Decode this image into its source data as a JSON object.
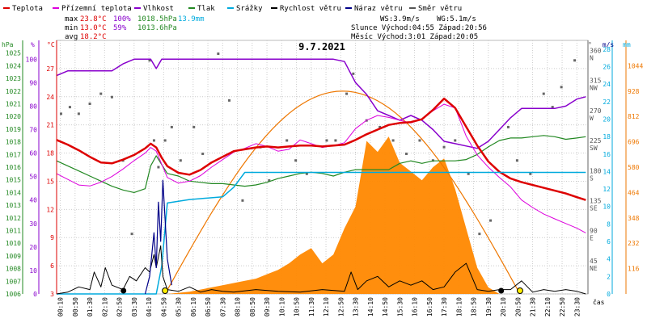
{
  "chart_data": {
    "type": "line",
    "title": "9.7.2021",
    "legend": [
      {
        "label": "Teplota",
        "color": "#dd0000"
      },
      {
        "label": "Přízemní teplota",
        "color": "#dd00dd"
      },
      {
        "label": "Vlhkost",
        "color": "#8800cc"
      },
      {
        "label": "Tlak",
        "color": "#228822"
      },
      {
        "label": "Srážky",
        "color": "#00aadd"
      },
      {
        "label": "Rychlost větru",
        "color": "#000000"
      },
      {
        "label": "Náraz větru",
        "color": "#000088"
      },
      {
        "label": "Směr větru",
        "color": "#555555"
      }
    ],
    "stats": {
      "max_label": "max",
      "max_temp": "23.8°C",
      "max_hum": "100%",
      "max_pres": "1018.5hPa",
      "max_rain": "13.9mm",
      "min_label": "min",
      "min_temp": "13.0°C",
      "min_hum": "59%",
      "min_pres": "1013.6hPa",
      "avg_label": "avg",
      "avg_temp": "18.2°C"
    },
    "info": {
      "ws": "WS:3.9m/s",
      "wg": "WG:5.1m/s",
      "sun": "Slunce Východ:04:55  Západ:20:56",
      "moon": "Měsíc  Východ:3:01   Západ:20:05"
    },
    "axes": {
      "hpa_label": "hPa",
      "pct_label": "%",
      "degc_label": "°C",
      "deg_label": "°",
      "ms_label": "m/s",
      "mm_label": "mm",
      "x_label": "čas",
      "hpa_ticks": [
        1006,
        1007,
        1008,
        1009,
        1010,
        1011,
        1012,
        1013,
        1014,
        1015,
        1016,
        1017,
        1018,
        1019,
        1020,
        1021,
        1022,
        1023,
        1024,
        1025
      ],
      "pct_ticks": [
        0,
        10,
        20,
        30,
        40,
        50,
        60,
        70,
        80,
        90,
        100
      ],
      "temp_ticks": [
        3,
        6,
        9,
        12,
        15,
        18,
        21,
        24,
        27
      ],
      "dir_ticks": [
        {
          "v": 360,
          "d": "N"
        },
        {
          "v": 315,
          "d": "NW"
        },
        {
          "v": 270,
          "d": "W"
        },
        {
          "v": 225,
          "d": "SW"
        },
        {
          "v": 180,
          "d": "S"
        },
        {
          "v": 135,
          "d": "SE"
        },
        {
          "v": 90,
          "d": "E"
        },
        {
          "v": 45,
          "d": "NE"
        }
      ],
      "ms_ticks": [
        0,
        2,
        4,
        6,
        8,
        10,
        12,
        14,
        16,
        18,
        20,
        22,
        24,
        26,
        28
      ],
      "rad_ticks": [
        0,
        116,
        232,
        348,
        464,
        580,
        696,
        812,
        928,
        1044
      ],
      "x_ticks": [
        "00:10",
        "00:50",
        "01:30",
        "02:10",
        "02:50",
        "03:30",
        "04:10",
        "04:50",
        "05:30",
        "06:10",
        "06:50",
        "07:30",
        "08:10",
        "08:50",
        "09:30",
        "10:10",
        "10:50",
        "11:30",
        "12:10",
        "12:50",
        "13:30",
        "14:10",
        "14:50",
        "15:30",
        "16:10",
        "16:50",
        "17:30",
        "18:10",
        "18:50",
        "19:30",
        "20:10",
        "20:50",
        "21:30",
        "22:10",
        "22:50",
        "23:30"
      ]
    },
    "ranges": {
      "temp": [
        3,
        30
      ],
      "hum": [
        0,
        108
      ],
      "pres": [
        1006,
        1026
      ],
      "rain": [
        0,
        29
      ],
      "dir": [
        0,
        380
      ],
      "rad": [
        0,
        1160
      ]
    },
    "grid": true,
    "hours": [
      0,
      0.5,
      1,
      1.5,
      2,
      2.5,
      3,
      3.5,
      4,
      4.25,
      4.5,
      4.75,
      5,
      5.5,
      6,
      6.5,
      7,
      7.5,
      8,
      8.5,
      9,
      9.5,
      10,
      10.5,
      11,
      11.5,
      12,
      12.5,
      13,
      13.5,
      14,
      14.5,
      15,
      15.5,
      16,
      16.5,
      17,
      17.5,
      18,
      18.5,
      19,
      19.5,
      20,
      20.5,
      21,
      21.5,
      22,
      22.5,
      23,
      23.5,
      23.9
    ],
    "series": {
      "temperature": [
        19.4,
        18.9,
        18.3,
        17.6,
        17.0,
        16.9,
        17.3,
        17.8,
        18.5,
        19.0,
        18.6,
        17.5,
        16.6,
        15.9,
        15.7,
        16.2,
        17.0,
        17.6,
        18.2,
        18.4,
        18.6,
        18.7,
        18.6,
        18.7,
        18.8,
        18.8,
        18.7,
        18.8,
        18.9,
        19.4,
        20.0,
        20.5,
        21.0,
        21.2,
        21.3,
        21.6,
        22.6,
        23.8,
        22.8,
        20.8,
        18.8,
        17.1,
        16.0,
        15.3,
        14.9,
        14.6,
        14.3,
        14.0,
        13.7,
        13.3,
        13.0
      ],
      "ground_temp": [
        15.8,
        15.2,
        14.6,
        14.5,
        14.9,
        15.5,
        16.3,
        17.2,
        18.0,
        18.6,
        18.2,
        16.8,
        15.4,
        14.8,
        15.0,
        15.6,
        16.5,
        17.3,
        18.1,
        18.5,
        19.0,
        18.7,
        18.2,
        18.4,
        19.4,
        19.0,
        18.6,
        18.8,
        19.1,
        20.6,
        21.5,
        22.0,
        21.8,
        21.5,
        21.2,
        21.6,
        22.5,
        23.2,
        22.8,
        19.8,
        17.8,
        16.5,
        15.4,
        14.4,
        13.0,
        12.2,
        11.5,
        11.0,
        10.5,
        10.0,
        9.5
      ],
      "humidity": [
        93,
        95,
        95,
        95,
        95,
        95,
        98,
        100,
        100,
        100,
        96,
        100,
        100,
        100,
        100,
        100,
        100,
        100,
        100,
        100,
        100,
        100,
        100,
        100,
        100,
        100,
        100,
        100,
        99,
        90,
        85,
        78,
        76,
        74,
        76,
        74,
        70,
        65,
        64,
        63,
        62,
        65,
        70,
        75,
        79,
        79,
        79,
        79,
        80,
        83,
        84
      ],
      "pressure": [
        1016.5,
        1016.1,
        1015.7,
        1015.3,
        1014.9,
        1014.5,
        1014.2,
        1014.0,
        1014.3,
        1016.1,
        1016.9,
        1016.2,
        1015.5,
        1015.3,
        1014.9,
        1014.8,
        1014.7,
        1014.7,
        1014.6,
        1014.5,
        1014.6,
        1014.8,
        1015.1,
        1015.3,
        1015.5,
        1015.6,
        1015.5,
        1015.3,
        1015.6,
        1015.8,
        1015.8,
        1015.8,
        1015.8,
        1016.3,
        1016.5,
        1016.3,
        1016.5,
        1016.5,
        1016.5,
        1016.6,
        1017.0,
        1017.6,
        1018.1,
        1018.3,
        1018.3,
        1018.4,
        1018.5,
        1018.4,
        1018.2,
        1018.3,
        1018.4
      ],
      "rain_total": [
        0,
        0,
        0,
        0,
        0,
        0,
        0,
        0,
        0,
        0,
        0,
        3.2,
        10.4,
        10.6,
        10.8,
        10.9,
        11.0,
        11.1,
        12.2,
        13.9,
        13.9,
        13.9,
        13.9,
        13.9,
        13.9,
        13.9,
        13.9,
        13.9,
        13.9,
        13.9,
        13.9,
        13.9,
        13.9,
        13.9,
        13.9,
        13.9,
        13.9,
        13.9,
        13.9,
        13.9,
        13.9,
        13.9,
        13.9,
        13.9,
        13.9,
        13.9,
        13.9,
        13.9,
        13.9,
        13.9,
        13.9
      ],
      "solar": [
        0,
        0,
        0,
        0,
        0,
        0,
        0,
        0,
        0,
        0,
        0,
        0,
        0,
        5,
        10,
        20,
        30,
        40,
        50,
        60,
        70,
        90,
        110,
        140,
        180,
        210,
        140,
        180,
        300,
        400,
        700,
        650,
        720,
        600,
        560,
        520,
        580,
        620,
        480,
        300,
        120,
        30,
        0,
        0,
        0,
        0,
        0,
        0,
        0,
        0,
        0
      ]
    },
    "wind_speed_h": [
      0,
      0.5,
      1,
      1.5,
      1.7,
      2,
      2.2,
      2.5,
      3,
      3.3,
      3.6,
      4,
      4.2,
      4.4,
      4.5,
      4.7,
      4.8,
      5,
      5.5,
      6,
      6.5,
      7,
      7.5,
      8,
      9,
      10,
      11,
      12,
      13,
      13.3,
      13.6,
      14,
      14.5,
      15,
      15.5,
      16,
      16.5,
      17,
      17.5,
      18,
      18.5,
      19,
      19.5,
      20,
      20.5,
      21,
      21.5,
      22,
      22.5,
      23,
      23.5,
      23.9
    ],
    "wind_speed": [
      0,
      0.2,
      0.8,
      0.5,
      2.5,
      0.8,
      3,
      1,
      0.5,
      2,
      1.5,
      3,
      2.5,
      4.5,
      3,
      5.5,
      2,
      0.5,
      0.3,
      0.8,
      0.2,
      0.5,
      0.3,
      0.2,
      0.5,
      0.3,
      0.2,
      0.5,
      0.3,
      2.5,
      0.5,
      1.5,
      2,
      0.8,
      1.5,
      1,
      1.5,
      0.5,
      0.8,
      2.5,
      3.5,
      0.5,
      0.3,
      0.5,
      0.5,
      1.5,
      0.2,
      0.5,
      0.3,
      0.5,
      0.3,
      0
    ],
    "wind_gust_h": [
      4,
      4.2,
      4.4,
      4.5,
      4.6,
      4.7,
      4.8,
      5,
      5.2
    ],
    "wind_gust": [
      0,
      2,
      7,
      3,
      10.5,
      6,
      13,
      4,
      1
    ],
    "wind_dir_points": [
      [
        0.2,
        270
      ],
      [
        0.6,
        280
      ],
      [
        1.0,
        270
      ],
      [
        1.5,
        285
      ],
      [
        2.0,
        300
      ],
      [
        2.5,
        295
      ],
      [
        3.0,
        200
      ],
      [
        3.4,
        90
      ],
      [
        4.2,
        350
      ],
      [
        4.4,
        230
      ],
      [
        4.6,
        190
      ],
      [
        4.9,
        230
      ],
      [
        5.2,
        250
      ],
      [
        5.6,
        200
      ],
      [
        6.2,
        250
      ],
      [
        6.6,
        210
      ],
      [
        7.3,
        360
      ],
      [
        7.8,
        290
      ],
      [
        8.4,
        140
      ],
      [
        9.2,
        220
      ],
      [
        9.6,
        170
      ],
      [
        10.4,
        230
      ],
      [
        10.8,
        200
      ],
      [
        11.3,
        180
      ],
      [
        12.2,
        230
      ],
      [
        12.6,
        230
      ],
      [
        13.1,
        300
      ],
      [
        13.4,
        330
      ],
      [
        14.0,
        260
      ],
      [
        14.6,
        250
      ],
      [
        15.2,
        230
      ],
      [
        15.8,
        210
      ],
      [
        16.4,
        230
      ],
      [
        17.0,
        200
      ],
      [
        17.5,
        220
      ],
      [
        18.0,
        230
      ],
      [
        18.6,
        180
      ],
      [
        19.1,
        90
      ],
      [
        19.6,
        110
      ],
      [
        20.4,
        250
      ],
      [
        20.8,
        200
      ],
      [
        21.4,
        180
      ],
      [
        22.0,
        300
      ],
      [
        22.4,
        280
      ],
      [
        22.8,
        310
      ],
      [
        23.4,
        350
      ]
    ],
    "markers": {
      "sunrise_h": 4.9,
      "sunset_h": 20.93,
      "moonrise_h": 3.02,
      "moonset_h": 20.08
    }
  }
}
